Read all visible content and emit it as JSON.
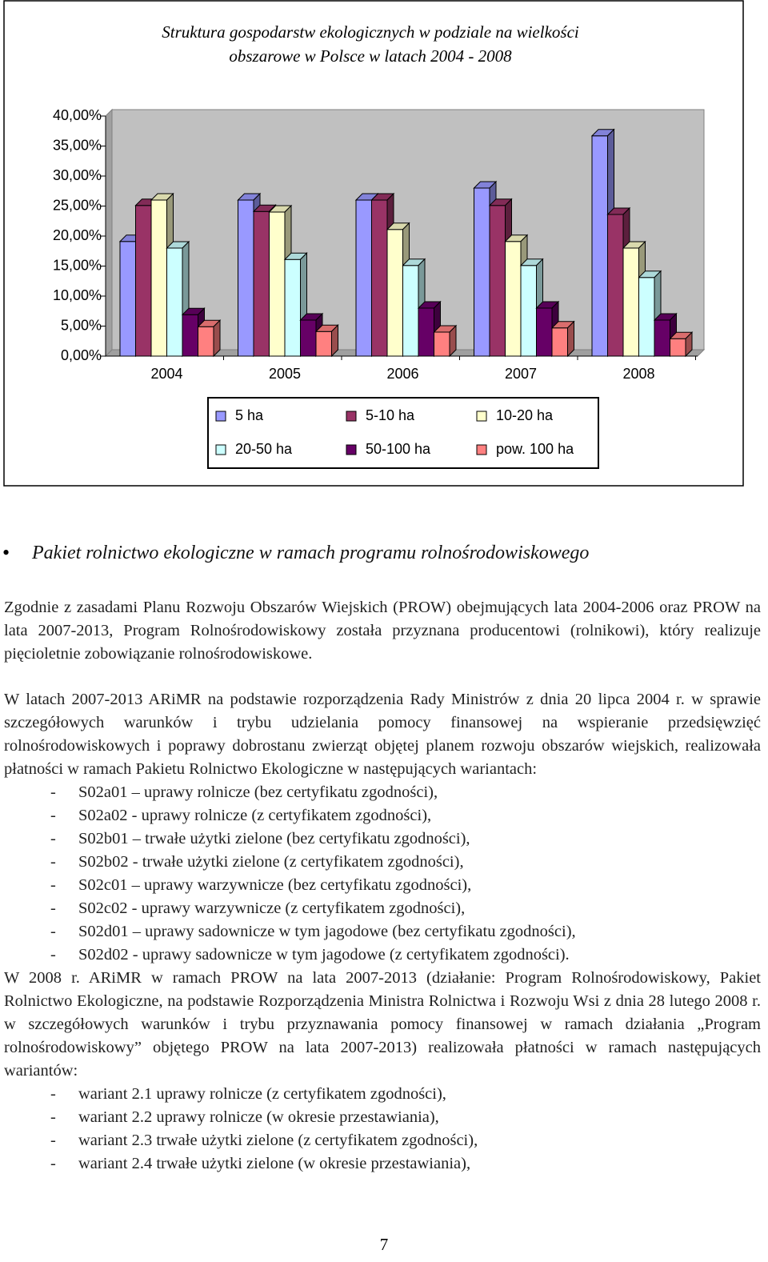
{
  "chart_data": {
    "type": "bar3d",
    "title": "Struktura gospodarstw ekologicznych w podziale na wielkości obszarowe w Polsce w latach 2004 - 2008",
    "categories": [
      "2004",
      "2005",
      "2006",
      "2007",
      "2008"
    ],
    "series": [
      {
        "name": "5 ha",
        "color": "#9999ff",
        "values": [
          19.1,
          26.0,
          26.0,
          28.0,
          36.7
        ]
      },
      {
        "name": "5-10 ha",
        "color": "#993366",
        "values": [
          25.1,
          24.1,
          26.0,
          25.1,
          23.6
        ]
      },
      {
        "name": "10-20 ha",
        "color": "#ffffcc",
        "values": [
          26.0,
          24.0,
          21.1,
          19.1,
          18.0
        ]
      },
      {
        "name": "20-50 ha",
        "color": "#ccffff",
        "values": [
          18.0,
          16.1,
          15.1,
          15.1,
          13.1
        ]
      },
      {
        "name": "50-100 ha",
        "color": "#660066",
        "values": [
          6.9,
          6.0,
          8.0,
          8.0,
          6.0
        ]
      },
      {
        "name": "pow. 100 ha",
        "color": "#ff8080",
        "values": [
          4.9,
          4.1,
          4.0,
          4.7,
          2.9
        ]
      }
    ],
    "ylim": [
      0,
      40
    ],
    "yticks": [
      {
        "value": 0,
        "label": "0,00%"
      },
      {
        "value": 5,
        "label": "5,00%"
      },
      {
        "value": 10,
        "label": "10,00%"
      },
      {
        "value": 15,
        "label": "15,00%"
      },
      {
        "value": 20,
        "label": "20,00%"
      },
      {
        "value": 25,
        "label": "25,00%"
      },
      {
        "value": 30,
        "label": "30,00%"
      },
      {
        "value": 35,
        "label": "35,00%"
      },
      {
        "value": 40,
        "label": "40,00%"
      }
    ],
    "legend": "bottom"
  },
  "document": {
    "heading": "Pakiet rolnictwo ekologiczne w ramach programu rolnośrodowiskowego",
    "paragraph1": "Zgodnie z zasadami Planu Rozwoju Obszarów Wiejskich (PROW) obejmujących lata 2004-2006 oraz PROW na lata 2007-2013, Program Rolnośrodowiskowy została przyznana producentowi (rolnikowi), który realizuje pięcioletnie zobowiązanie rolnośrodowiskowe.",
    "paragraph2": "W latach 2007-2013 ARiMR na podstawie rozporządzenia Rady Ministrów z dnia 20 lipca 2004 r. w sprawie szczegółowych warunków i trybu udzielania pomocy finansowej na wspieranie przedsięwzięć rolnośrodowiskowych i poprawy dobrostanu zwierząt objętej planem rozwoju obszarów wiejskich, realizowała płatności w ramach Pakietu Rolnictwo Ekologiczne w następujących wariantach:",
    "list1": [
      "S02a01 – uprawy rolnicze (bez certyfikatu zgodności),",
      "S02a02 - uprawy rolnicze (z certyfikatem zgodności),",
      "S02b01 – trwałe użytki zielone (bez certyfikatu zgodności),",
      "S02b02 - trwałe użytki zielone (z certyfikatem zgodności),",
      "S02c01 – uprawy warzywnicze (bez certyfikatu zgodności),",
      "S02c02 - uprawy warzywnicze (z certyfikatem zgodności),",
      "S02d01 – uprawy sadownicze w tym jagodowe (bez certyfikatu zgodności),",
      "S02d02 - uprawy sadownicze w tym jagodowe (z certyfikatem zgodności)."
    ],
    "paragraph3": "W 2008 r. ARiMR w ramach PROW na lata 2007-2013 (działanie: Program Rolnośrodowiskowy, Pakiet Rolnictwo Ekologiczne, na podstawie Rozporządzenia Ministra Rolnictwa i Rozwoju Wsi z dnia 28 lutego 2008 r. w szczegółowych warunków i trybu przyznawania pomocy finansowej w ramach działania „Program rolnośrodowiskowy” objętego PROW na lata 2007-2013) realizowała płatności w ramach następujących wariantów:",
    "list2": [
      "wariant 2.1 uprawy rolnicze (z certyfikatem zgodności),",
      "wariant 2.2 uprawy rolnicze (w okresie przestawiania),",
      "wariant 2.3 trwałe użytki zielone (z certyfikatem zgodności),",
      "wariant 2.4 trwałe użytki zielone (w okresie przestawiania),"
    ],
    "page_number": "7"
  }
}
